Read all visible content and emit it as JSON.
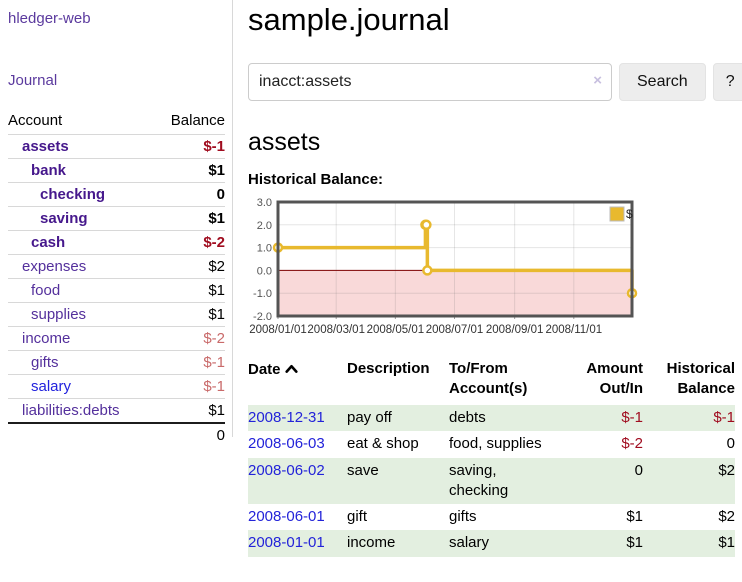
{
  "colors": {
    "link_purple": "#5b3a9e",
    "account_purple_bold": "#46188c",
    "link_blue": "#2222dd",
    "negative_strong": "#a00c1f",
    "negative_soft": "#c96a6a",
    "row_stripe_green": "#e3efe0",
    "chart_line_gold": "#e8b92e",
    "chart_negative_pink": "#f9d9d9",
    "chart_zero_line": "#7d0000"
  },
  "sidebar": {
    "app_title": "hledger-web",
    "journal_link": "Journal",
    "accounts": {
      "header_account": "Account",
      "header_balance": "Balance",
      "rows": [
        {
          "name": "assets",
          "indent": 1,
          "bold": true,
          "blue": false,
          "balance": "$-1",
          "balance_class": "neg-strong"
        },
        {
          "name": "bank",
          "indent": 2,
          "bold": true,
          "blue": false,
          "balance": "$1",
          "balance_class": "pos-strong"
        },
        {
          "name": "checking",
          "indent": 3,
          "bold": true,
          "blue": false,
          "balance": "0",
          "balance_class": "pos-strong"
        },
        {
          "name": "saving",
          "indent": 3,
          "bold": true,
          "blue": false,
          "balance": "$1",
          "balance_class": "pos-strong"
        },
        {
          "name": "cash",
          "indent": 2,
          "bold": true,
          "blue": false,
          "balance": "$-2",
          "balance_class": "neg-strong"
        },
        {
          "name": "expenses",
          "indent": 1,
          "bold": false,
          "blue": false,
          "balance": "$2",
          "balance_class": "pos"
        },
        {
          "name": "food",
          "indent": 2,
          "bold": false,
          "blue": false,
          "balance": "$1",
          "balance_class": "pos"
        },
        {
          "name": "supplies",
          "indent": 2,
          "bold": false,
          "blue": false,
          "balance": "$1",
          "balance_class": "pos"
        },
        {
          "name": "income",
          "indent": 1,
          "bold": false,
          "blue": false,
          "balance": "$-2",
          "balance_class": "neg"
        },
        {
          "name": "gifts",
          "indent": 2,
          "bold": false,
          "blue": false,
          "balance": "$-1",
          "balance_class": "neg"
        },
        {
          "name": "salary",
          "indent": 2,
          "bold": false,
          "blue": true,
          "balance": "$-1",
          "balance_class": "neg"
        },
        {
          "name": "liabilities:debts",
          "indent": 1,
          "bold": false,
          "blue": false,
          "balance": "$1",
          "balance_class": "pos"
        }
      ],
      "total": "0"
    }
  },
  "main": {
    "page_title": "sample.journal",
    "search": {
      "value": "inacct:assets",
      "clear_label": "×",
      "search_button": "Search",
      "help_button": "?"
    },
    "account_heading": "assets",
    "chart_title": "Historical Balance:"
  },
  "chart_data": {
    "type": "line",
    "step": true,
    "title": "Historical Balance:",
    "legend": {
      "label": "$",
      "position": "top-right"
    },
    "x": [
      "2008-01-01",
      "2008-06-01",
      "2008-06-02",
      "2008-06-03",
      "2008-12-31"
    ],
    "series": [
      {
        "name": "$",
        "values": [
          1,
          2,
          2,
          0,
          -1
        ]
      }
    ],
    "xlim": [
      "2008-01-01",
      "2008-12-31"
    ],
    "ylim": [
      -2,
      3
    ],
    "x_tick_labels": [
      "2008/01/01",
      "2008/03/01",
      "2008/05/01",
      "2008/07/01",
      "2008/09/01",
      "2008/11/01"
    ],
    "y_tick_labels": [
      "3.0",
      "2.0",
      "1.0",
      "0.0",
      "-1.0",
      "-2.0"
    ],
    "grid": true,
    "line_color": "#e8b92e",
    "negative_fill": "#f9d9d9",
    "zero_line_color": "#7d0000"
  },
  "transactions": {
    "headers": {
      "date": "Date",
      "sort_icon": "chevron-up",
      "description": "Description",
      "accounts": "To/From Account(s)",
      "amount": "Amount Out/In",
      "balance": "Historical Balance"
    },
    "rows": [
      {
        "date": "2008-12-31",
        "description": "pay off",
        "accounts": "debts",
        "amount": "$-1",
        "amount_neg": true,
        "balance": "$-1",
        "balance_neg": true
      },
      {
        "date": "2008-06-03",
        "description": "eat & shop",
        "accounts": "food, supplies",
        "amount": "$-2",
        "amount_neg": true,
        "balance": "0",
        "balance_neg": false
      },
      {
        "date": "2008-06-02",
        "description": "save",
        "accounts": "saving, checking",
        "amount": "0",
        "amount_neg": false,
        "balance": "$2",
        "balance_neg": false
      },
      {
        "date": "2008-06-01",
        "description": "gift",
        "accounts": "gifts",
        "amount": "$1",
        "amount_neg": false,
        "balance": "$2",
        "balance_neg": false
      },
      {
        "date": "2008-01-01",
        "description": "income",
        "accounts": "salary",
        "amount": "$1",
        "amount_neg": false,
        "balance": "$1",
        "balance_neg": false
      }
    ]
  }
}
